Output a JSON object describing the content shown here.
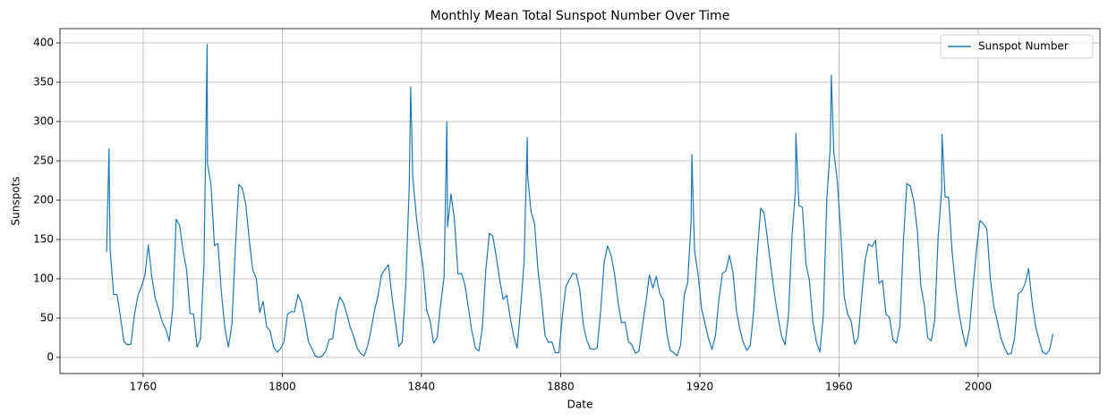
{
  "chart_data": {
    "type": "line",
    "title": "Monthly Mean Total Sunspot Number Over Time",
    "x_label": "Date",
    "y_label": "Sunspots",
    "x": [
      1749.5,
      1750.2,
      1750.5,
      1751.5,
      1752.5,
      1753.5,
      1754.5,
      1755.5,
      1756.5,
      1757.5,
      1758.5,
      1759.5,
      1760.5,
      1761.5,
      1762.5,
      1763.5,
      1764.5,
      1765.5,
      1766.5,
      1767.5,
      1768.5,
      1769.5,
      1770.5,
      1771.5,
      1772.5,
      1773.5,
      1774.5,
      1775.5,
      1776.5,
      1777.5,
      1778.4,
      1778.5,
      1779.5,
      1780.5,
      1781.5,
      1782.5,
      1783.5,
      1784.5,
      1785.5,
      1786.5,
      1787.5,
      1788.5,
      1789.5,
      1790.5,
      1791.5,
      1792.5,
      1793.5,
      1794.5,
      1795.5,
      1796.5,
      1797.5,
      1798.5,
      1799.5,
      1800.5,
      1801.5,
      1802.5,
      1803.5,
      1804.5,
      1805.5,
      1806.5,
      1807.5,
      1808.5,
      1809.5,
      1810.5,
      1811.5,
      1812.5,
      1813.5,
      1814.5,
      1815.5,
      1816.5,
      1817.5,
      1818.5,
      1819.5,
      1820.5,
      1821.5,
      1822.5,
      1823.5,
      1824.5,
      1825.5,
      1826.5,
      1827.5,
      1828.5,
      1829.5,
      1830.5,
      1831.5,
      1832.5,
      1833.5,
      1834.5,
      1835.5,
      1836.5,
      1836.9,
      1837.5,
      1838.5,
      1839.5,
      1840.5,
      1841.5,
      1842.5,
      1843.5,
      1844.5,
      1845.5,
      1846.5,
      1847.3,
      1847.5,
      1848.5,
      1849.5,
      1850.5,
      1851.5,
      1852.5,
      1853.5,
      1854.5,
      1855.5,
      1856.5,
      1857.5,
      1858.5,
      1859.5,
      1860.5,
      1861.5,
      1862.5,
      1863.5,
      1864.5,
      1865.5,
      1866.5,
      1867.5,
      1868.5,
      1869.5,
      1870.4,
      1870.5,
      1871.5,
      1872.5,
      1873.5,
      1874.5,
      1875.5,
      1876.5,
      1877.5,
      1878.5,
      1879.5,
      1880.5,
      1881.5,
      1882.5,
      1883.5,
      1884.5,
      1885.5,
      1886.5,
      1887.5,
      1888.5,
      1889.5,
      1890.5,
      1891.5,
      1892.5,
      1893.5,
      1894.5,
      1895.5,
      1896.5,
      1897.5,
      1898.5,
      1899.5,
      1900.5,
      1901.5,
      1902.5,
      1903.5,
      1904.5,
      1905.5,
      1906.5,
      1907.5,
      1908.5,
      1909.5,
      1910.5,
      1911.5,
      1912.5,
      1913.5,
      1914.5,
      1915.5,
      1916.5,
      1917.5,
      1917.7,
      1918.5,
      1919.5,
      1920.5,
      1921.5,
      1922.5,
      1923.5,
      1924.5,
      1925.5,
      1926.5,
      1927.5,
      1928.5,
      1929.5,
      1930.5,
      1931.5,
      1932.5,
      1933.5,
      1934.5,
      1935.5,
      1936.5,
      1937.5,
      1938.5,
      1939.5,
      1940.5,
      1941.5,
      1942.5,
      1943.5,
      1944.5,
      1945.5,
      1946.5,
      1947.5,
      1947.6,
      1948.5,
      1949.5,
      1950.5,
      1951.5,
      1952.5,
      1953.5,
      1954.5,
      1955.5,
      1956.5,
      1957.5,
      1957.8,
      1958.5,
      1959.5,
      1960.5,
      1961.5,
      1962.5,
      1963.5,
      1964.5,
      1965.5,
      1966.5,
      1967.5,
      1968.5,
      1969.5,
      1970.5,
      1971.5,
      1972.5,
      1973.5,
      1974.5,
      1975.5,
      1976.5,
      1977.5,
      1978.5,
      1979.5,
      1980.5,
      1981.5,
      1982.5,
      1983.5,
      1984.5,
      1985.5,
      1986.5,
      1987.5,
      1988.5,
      1989.5,
      1989.6,
      1990.5,
      1991.5,
      1992.5,
      1993.5,
      1994.5,
      1995.5,
      1996.5,
      1997.5,
      1998.5,
      1999.5,
      2000.5,
      2001.5,
      2002.5,
      2003.5,
      2004.5,
      2005.5,
      2006.5,
      2007.5,
      2008.5,
      2009.5,
      2010.5,
      2011.5,
      2012.5,
      2013.5,
      2014.5,
      2015.5,
      2016.5,
      2017.5,
      2018.5,
      2019.5,
      2020.5,
      2021.5
    ],
    "series": [
      {
        "name": "Sunspot Number",
        "color": "#1f77b4",
        "values": [
          134,
          265,
          139,
          80,
          80,
          51,
          20,
          16,
          17,
          54,
          79,
          90,
          104,
          143,
          102,
          75,
          61,
          45,
          36,
          21,
          62,
          176,
          168,
          135,
          111,
          56,
          55,
          13,
          24,
          121,
          398,
          246,
          220,
          142,
          145,
          82,
          38,
          13,
          41,
          138,
          220,
          215,
          195,
          150,
          111,
          101,
          57,
          71,
          39,
          34,
          13,
          7,
          11,
          20,
          55,
          58,
          58,
          80,
          70,
          47,
          20,
          11,
          2,
          0,
          2,
          8,
          23,
          24,
          58,
          77,
          70,
          56,
          39,
          27,
          12,
          5,
          2,
          14,
          35,
          60,
          78,
          105,
          112,
          118,
          78,
          46,
          14,
          20,
          93,
          220,
          344,
          230,
          180,
          143,
          114,
          60,
          46,
          18,
          25,
          67,
          102,
          300,
          166,
          208,
          174,
          106,
          107,
          92,
          63,
          33,
          12,
          8,
          38,
          111,
          158,
          154,
          128,
          98,
          74,
          79,
          51,
          27,
          12,
          63,
          122,
          280,
          232,
          185,
          170,
          110,
          74,
          28,
          19,
          20,
          6,
          6,
          53,
          90,
          99,
          107,
          106,
          86,
          42,
          22,
          11,
          10,
          12,
          59,
          121,
          142,
          130,
          106,
          70,
          44,
          45,
          20,
          16,
          5,
          8,
          40,
          70,
          105,
          88,
          103,
          81,
          73,
          31,
          9,
          6,
          2,
          16,
          79,
          95,
          173,
          258,
          135,
          106,
          62,
          43,
          24,
          10,
          28,
          74,
          107,
          110,
          130,
          109,
          60,
          36,
          19,
          9,
          15,
          60,
          132,
          190,
          183,
          148,
          113,
          79,
          51,
          27,
          16,
          55,
          155,
          214,
          285,
          193,
          191,
          119,
          98,
          45,
          20,
          7,
          54,
          201,
          269,
          359,
          262,
          225,
          160,
          77,
          55,
          46,
          17,
          25,
          76,
          124,
          144,
          141,
          149,
          94,
          98,
          55,
          51,
          23,
          18,
          40,
          146,
          221,
          218,
          199,
          162,
          92,
          67,
          25,
          21,
          47,
          153,
          213,
          284,
          204,
          204,
          135,
          90,
          56,
          32,
          14,
          36,
          89,
          136,
          174,
          170,
          163,
          100,
          65,
          46,
          25,
          13,
          4,
          5,
          25,
          81,
          84,
          94,
          113,
          70,
          40,
          22,
          7,
          4,
          9,
          30
        ]
      }
    ],
    "xlim": [
      1736.1,
      2035.0
    ],
    "ylim": [
      -20.5,
      418.2
    ],
    "xticks": [
      1760,
      1800,
      1840,
      1880,
      1920,
      1960,
      2000
    ],
    "yticks": [
      0,
      50,
      100,
      150,
      200,
      250,
      300,
      350,
      400
    ],
    "grid": true,
    "legend": "upper right"
  }
}
